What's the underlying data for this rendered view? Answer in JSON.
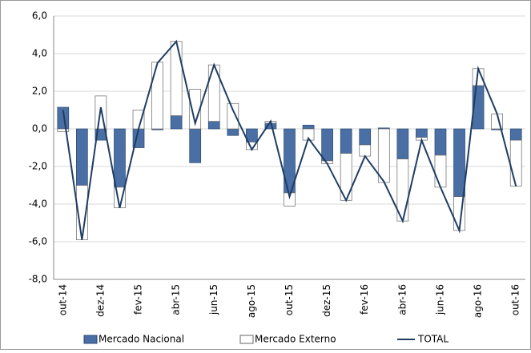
{
  "chart_data": {
    "type": "bar",
    "categories": [
      "out-14",
      null,
      "dez-14",
      null,
      "fev-15",
      null,
      "abr-15",
      null,
      "jun-15",
      null,
      "ago-15",
      null,
      "out-15",
      null,
      "dez-15",
      null,
      "fev-16",
      null,
      "abr-16",
      null,
      "jun-16",
      null,
      "ago-16",
      null,
      "out-16"
    ],
    "series": [
      {
        "name": "Mercado Nacional",
        "type": "bar",
        "color": "#4a6fa5",
        "values": [
          1.15,
          -3.0,
          -0.6,
          -3.1,
          -1.0,
          -0.05,
          0.7,
          -1.8,
          0.4,
          -0.35,
          -0.7,
          0.3,
          -3.4,
          0.2,
          -1.7,
          -1.3,
          -0.85,
          0.05,
          -1.6,
          -0.45,
          -1.4,
          -3.6,
          2.3,
          -0.05,
          -0.6
        ]
      },
      {
        "name": "Mercado Externo",
        "type": "bar",
        "color": "#ffffff",
        "values": [
          -0.15,
          -2.9,
          1.75,
          -1.1,
          1.0,
          3.55,
          3.95,
          2.1,
          3.0,
          1.35,
          -0.4,
          0.1,
          -0.7,
          -0.6,
          -0.15,
          -2.5,
          -0.6,
          -2.85,
          -3.3,
          -0.15,
          -1.7,
          -1.8,
          0.9,
          0.8,
          -2.45
        ]
      },
      {
        "name": "TOTAL",
        "type": "line",
        "color": "#1f3d64",
        "values": [
          1.0,
          -5.9,
          1.15,
          -4.2,
          0.0,
          3.5,
          4.65,
          0.3,
          3.4,
          1.0,
          -1.1,
          0.4,
          -3.6,
          -0.5,
          -1.85,
          -3.8,
          -1.45,
          -2.8,
          -4.9,
          -0.6,
          -3.1,
          -5.4,
          3.2,
          0.8,
          -3.05
        ]
      }
    ],
    "ylim": [
      -8,
      6
    ],
    "yticks": [
      {
        "value": -8,
        "label": "-8,0"
      },
      {
        "value": -6,
        "label": "-6,0"
      },
      {
        "value": -4,
        "label": "-4,0"
      },
      {
        "value": -2,
        "label": "-2,0"
      },
      {
        "value": 0,
        "label": "0,0"
      },
      {
        "value": 2,
        "label": "2,0"
      },
      {
        "value": 4,
        "label": "4,0"
      },
      {
        "value": 6,
        "label": "6,0"
      }
    ],
    "grid": true,
    "legend": "bottom"
  }
}
